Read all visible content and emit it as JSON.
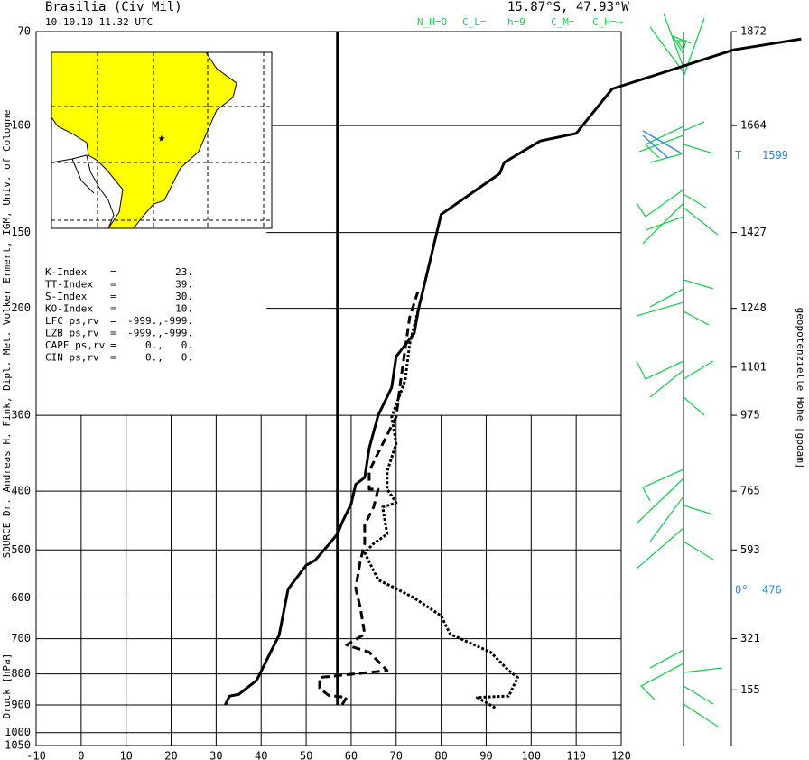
{
  "chart_data": {
    "type": "line",
    "title": "Brasilia_(Civ_Mil)",
    "subtitle": "10.10.10  11.32 UTC",
    "location": "15.87°S, 47.93°W",
    "cloud_codes": [
      "N_H=O",
      "C_L=",
      "h=9",
      "C_M=",
      "C_H=⟶"
    ],
    "source": "SOURCE Dr. Andreas H. Fink, Dipl. Met. Volker Ermert, IGM, Univ. of Cologne",
    "y_label": "Druck [hPa]",
    "y2_label": "geopotenzielle Höhe [gpdam]",
    "log_scale": true,
    "xlim": [
      -10,
      120
    ],
    "xticks": [
      -10,
      0,
      10,
      20,
      30,
      40,
      50,
      60,
      70,
      80,
      90,
      100,
      110,
      120
    ],
    "ylim": [
      70,
      1050
    ],
    "yticks": [
      70,
      100,
      150,
      200,
      300,
      400,
      500,
      600,
      700,
      800,
      900,
      1000,
      1050
    ],
    "height_ticks": [
      {
        "value": 70,
        "label": "1872"
      },
      {
        "value": 100,
        "label": "1664"
      },
      {
        "value": 150,
        "label": "1427"
      },
      {
        "value": 200,
        "label": "1248"
      },
      {
        "value": 250,
        "label": "1101"
      },
      {
        "value": 300,
        "label": "975"
      },
      {
        "value": 400,
        "label": "765"
      },
      {
        "value": 500,
        "label": "593"
      },
      {
        "value": 700,
        "label": "321"
      },
      {
        "value": 850,
        "label": "155"
      }
    ],
    "annotations": [
      {
        "label": "T",
        "height": 1599,
        "pressure": 112
      },
      {
        "label": "0°",
        "height": 476,
        "pressure": 583
      }
    ],
    "indices": [
      [
        "K-Index",
        "=",
        "23."
      ],
      [
        "TT-Index",
        "=",
        "39."
      ],
      [
        "S-Index",
        "=",
        "30."
      ],
      [
        "KO-Index",
        "=",
        "10."
      ],
      [
        "LFC  ps,rv",
        "=",
        "-999.,-999."
      ],
      [
        "LZB  ps,rv",
        "=",
        "-999.,-999."
      ],
      [
        "CAPE ps,rv",
        "=",
        "0.,   0."
      ],
      [
        "CIN  ps,rv",
        "=",
        "0.,   0."
      ]
    ],
    "series": [
      {
        "color": "#000000",
        "style": "solid",
        "width": 3.5,
        "values": [
          57,
          57
        ],
        "pressure": [
          70,
          900
        ]
      },
      {
        "color": "#000000",
        "style": "solid",
        "width": 3,
        "values": [
          32,
          33,
          35,
          39,
          44,
          46,
          50,
          52,
          55,
          57,
          58,
          60,
          61,
          63,
          64,
          66,
          69,
          70,
          74,
          75,
          80,
          93,
          94,
          102,
          110,
          118,
          145,
          160
        ],
        "pressure": [
          900,
          870,
          865,
          820,
          690,
          580,
          530,
          520,
          490,
          470,
          450,
          420,
          390,
          380,
          340,
          300,
          270,
          240,
          220,
          200,
          140,
          120,
          115,
          106,
          103,
          87,
          75,
          72
        ]
      },
      {
        "color": "#000000",
        "style": "dashed",
        "width": 3,
        "values": [
          58,
          59,
          55,
          53,
          53,
          68,
          64,
          59,
          63,
          62,
          61,
          62,
          63,
          63,
          65,
          66,
          64,
          64,
          66,
          70,
          71,
          73,
          75
        ],
        "pressure": [
          899,
          875,
          868,
          845,
          811,
          790,
          737,
          717,
          688,
          620,
          579,
          523,
          488,
          455,
          425,
          397,
          397,
          371,
          346,
          302,
          263,
          207,
          186
        ]
      },
      {
        "color": "#000000",
        "style": "dotted",
        "width": 3,
        "values": [
          92,
          88,
          95,
          97,
          95,
          91,
          82,
          80,
          74,
          70,
          66,
          64,
          63,
          65,
          68,
          67,
          70,
          68,
          68,
          70,
          69,
          72,
          73,
          75
        ],
        "pressure": [
          910,
          875,
          870,
          811,
          790,
          737,
          688,
          642,
          600,
          579,
          560,
          523,
          505,
          488,
          471,
          425,
          418,
          397,
          371,
          334,
          302,
          263,
          229,
          200
        ]
      }
    ]
  }
}
